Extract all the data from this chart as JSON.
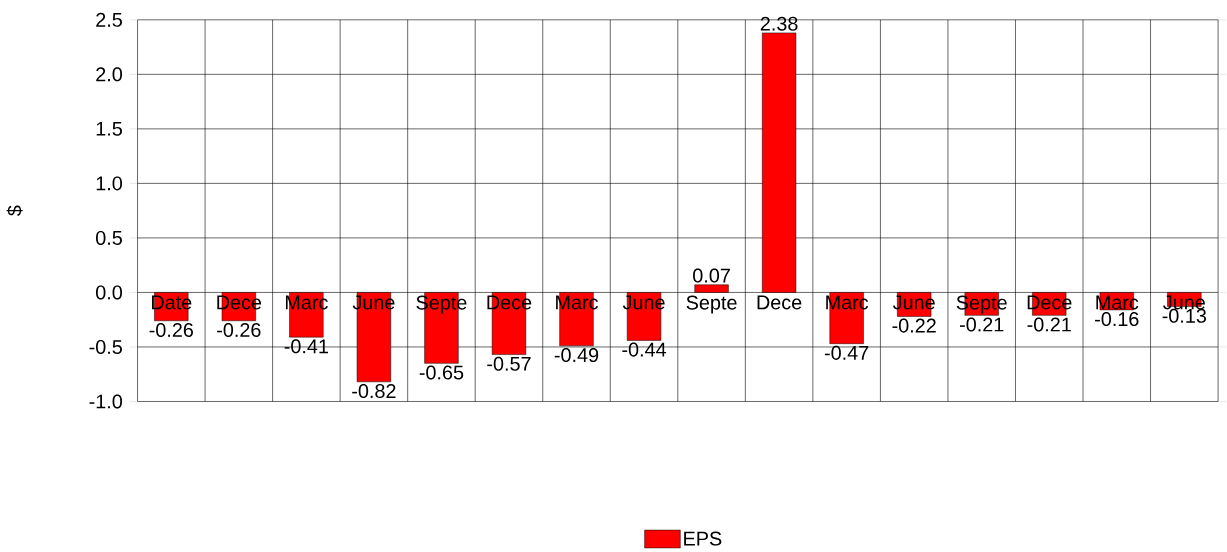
{
  "chart_data": {
    "type": "bar",
    "ylabel": "$",
    "categories": [
      "Date",
      "Dece",
      "Marc",
      "June",
      "Septe",
      "Dece",
      "Marc",
      "June",
      "Septe",
      "Dece",
      "Marc",
      "June",
      "Septe",
      "Dece",
      "Marc",
      "June"
    ],
    "series": [
      {
        "name": "EPS",
        "color": "#ff0000",
        "values": [
          -0.26,
          -0.26,
          -0.41,
          -0.82,
          -0.65,
          -0.57,
          -0.49,
          -0.44,
          0.07,
          2.38,
          -0.47,
          -0.22,
          -0.21,
          -0.21,
          -0.16,
          -0.13
        ]
      }
    ],
    "ylim": [
      -1.0,
      2.5
    ],
    "yticks": [
      {
        "value": -1.0,
        "label": "-1.0"
      },
      {
        "value": -0.5,
        "label": "-0.5"
      },
      {
        "value": 0.0,
        "label": "0.0"
      },
      {
        "value": 0.5,
        "label": "0.5"
      },
      {
        "value": 1.0,
        "label": "1.0"
      },
      {
        "value": 1.5,
        "label": "1.5"
      },
      {
        "value": 2.0,
        "label": "2.0"
      },
      {
        "value": 2.5,
        "label": "2.5"
      }
    ],
    "grid": true,
    "legend": "bottom",
    "data_labels": true
  }
}
